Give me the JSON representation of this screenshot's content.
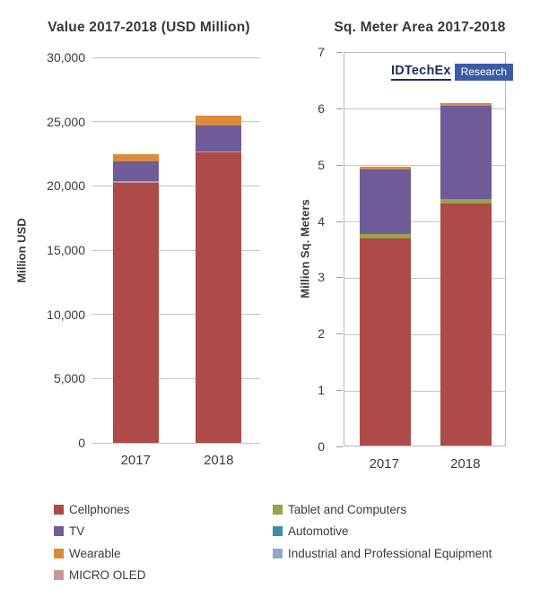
{
  "chart_data": [
    {
      "type": "bar",
      "stacked": true,
      "title": "Value 2017-2018 (USD Million)",
      "xlabel": "",
      "ylabel": "Million USD",
      "categories": [
        "2017",
        "2018"
      ],
      "ylim": [
        0,
        30000
      ],
      "ytick_step": 5000,
      "ytick_labels": [
        "0",
        "5,000",
        "10,000",
        "15,000",
        "20,000",
        "25,000",
        "30,000"
      ],
      "grid": true,
      "plot_border": false,
      "series": [
        {
          "name": "Cellphones",
          "color": "#ae4a47",
          "values": [
            20200,
            22600
          ]
        },
        {
          "name": "MICRO OLED",
          "color": "#c89795",
          "values": [
            150,
            100
          ]
        },
        {
          "name": "TV",
          "color": "#6f5b97",
          "values": [
            1550,
            2000
          ]
        },
        {
          "name": "Wearable",
          "color": "#dc8a3c",
          "values": [
            550,
            750
          ]
        }
      ],
      "totals": [
        22450,
        25450
      ]
    },
    {
      "type": "bar",
      "stacked": true,
      "title": "Sq. Meter Area 2017-2018",
      "xlabel": "",
      "ylabel": "Million Sq. Meters",
      "categories": [
        "2017",
        "2018"
      ],
      "ylim": [
        0,
        7
      ],
      "ytick_step": 1,
      "ytick_labels": [
        "0",
        "1",
        "2",
        "3",
        "4",
        "5",
        "6",
        "7"
      ],
      "grid": true,
      "plot_border": true,
      "series": [
        {
          "name": "Cellphones",
          "color": "#ae4a47",
          "values": [
            3.68,
            4.3
          ]
        },
        {
          "name": "Tablet and Computers",
          "color": "#94a545",
          "values": [
            0.07,
            0.07
          ]
        },
        {
          "name": "TV",
          "color": "#6f5b97",
          "values": [
            1.15,
            1.66
          ]
        },
        {
          "name": "Wearable",
          "color": "#dc8a3c",
          "values": [
            0.05,
            0.04
          ]
        }
      ],
      "totals": [
        4.95,
        6.07
      ]
    }
  ],
  "logo": {
    "brand": "IDTechEx",
    "sub": "Research",
    "brand_color": "#1b2f5e",
    "sub_bg": "#3a5ca8"
  },
  "legend": {
    "columns": [
      [
        {
          "label": "Cellphones",
          "color": "#ae4a47"
        },
        {
          "label": "TV",
          "color": "#6f5b97"
        },
        {
          "label": "Wearable",
          "color": "#dc8a3c"
        },
        {
          "label": "MICRO OLED",
          "color": "#c89795"
        }
      ],
      [
        {
          "label": "Tablet and Computers",
          "color": "#94a545"
        },
        {
          "label": "Automotive",
          "color": "#3d8ea4"
        },
        {
          "label": "Industrial and Professional Equipment",
          "color": "#8fa7cc"
        }
      ]
    ]
  },
  "colors": {
    "grid": "#c6c6c6",
    "text": "#3b3b3b",
    "plot_border": "#b8b8b8"
  }
}
